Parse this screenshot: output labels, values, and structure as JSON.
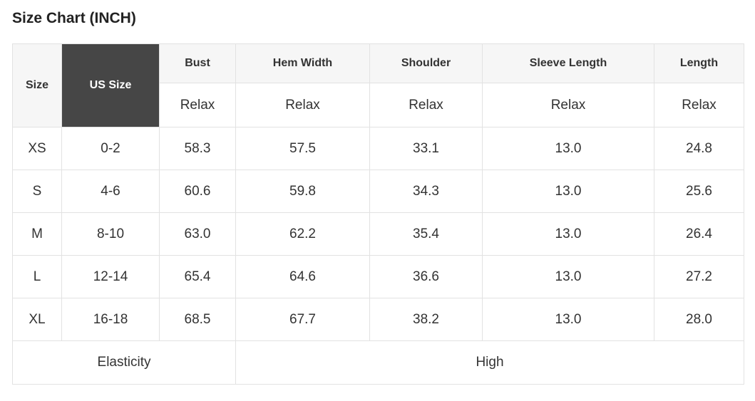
{
  "title": "Size Chart (INCH)",
  "chart_data": {
    "type": "table",
    "title": "Size Chart (INCH)",
    "unit": "INCH",
    "corner_header": "Size",
    "us_size_header": "US Size",
    "measure_columns": [
      "Bust",
      "Hem Width",
      "Shoulder",
      "Sleeve Length",
      "Length"
    ],
    "fit_type_label": "Relax",
    "rows": [
      {
        "size": "XS",
        "us_size": "0-2",
        "bust": "58.3",
        "hem_width": "57.5",
        "shoulder": "33.1",
        "sleeve_length": "13.0",
        "length": "24.8"
      },
      {
        "size": "S",
        "us_size": "4-6",
        "bust": "60.6",
        "hem_width": "59.8",
        "shoulder": "34.3",
        "sleeve_length": "13.0",
        "length": "25.6"
      },
      {
        "size": "M",
        "us_size": "8-10",
        "bust": "63.0",
        "hem_width": "62.2",
        "shoulder": "35.4",
        "sleeve_length": "13.0",
        "length": "26.4"
      },
      {
        "size": "L",
        "us_size": "12-14",
        "bust": "65.4",
        "hem_width": "64.6",
        "shoulder": "36.6",
        "sleeve_length": "13.0",
        "length": "27.2"
      },
      {
        "size": "XL",
        "us_size": "16-18",
        "bust": "68.5",
        "hem_width": "67.7",
        "shoulder": "38.2",
        "sleeve_length": "13.0",
        "length": "28.0"
      }
    ],
    "footer": {
      "label": "Elasticity",
      "value": "High"
    }
  },
  "colors": {
    "header_bg": "#f6f6f6",
    "us_size_cell_bg": "#464646",
    "us_size_cell_text": "#ffffff",
    "border": "#e2e2e2",
    "text": "#333333",
    "title_text": "#222222",
    "page_bg": "#ffffff"
  }
}
